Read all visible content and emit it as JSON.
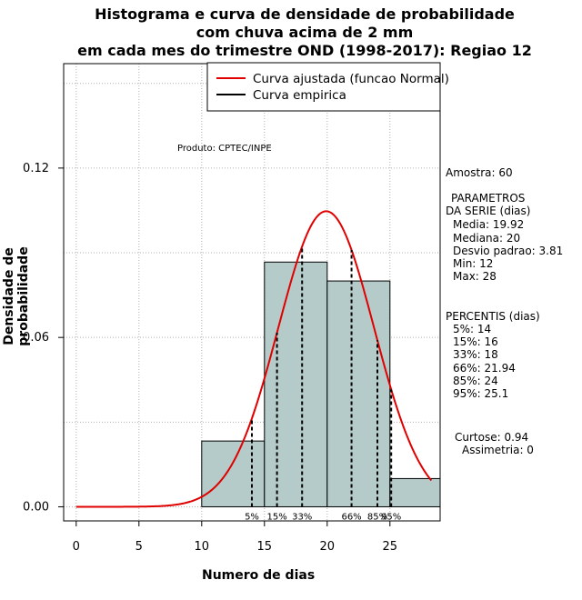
{
  "titles": {
    "line1": "Histograma e curva de densidade de probabilidade",
    "line2": "com chuva acima de 2 mm",
    "line3": "em cada mes do trimestre OND (1998-2017): Regiao 12"
  },
  "credit": "Produto: CPTEC/INPE",
  "legend": {
    "fitted": "Curva ajustada (funcao Normal)",
    "empirical": "Curva empirica"
  },
  "colors": {
    "bar_fill": "#b4cbc9",
    "fitted_curve": "#e00000",
    "empirical": "#000000",
    "grid": "#b0b0b0"
  },
  "stats": {
    "amostra": "Amostra: 60",
    "param_title1": "PARAMETROS",
    "param_title2": "DA SERIE (dias)",
    "media": "Media: 19.92",
    "mediana": "Mediana: 20",
    "desvio": "Desvio padrao: 3.81",
    "min": "Min: 12",
    "max": "Max: 28",
    "percentis_title": "PERCENTIS (dias)",
    "p5": "5%: 14",
    "p15": "15%: 16",
    "p33": "33%: 18",
    "p66": "66%: 21.94",
    "p85": "85%: 24",
    "p95": "95%: 25.1",
    "curtose": "Curtose: 0.94",
    "assimetria": "Assimetria: 0"
  },
  "chart_data": {
    "type": "bar",
    "title": "Histograma e curva de densidade de probabilidade com chuva acima de 2 mm em cada mes do trimestre OND (1998-2017): Regiao 12",
    "xlabel": "Numero de dias",
    "ylabel": "Densidade de probabilidade",
    "xlim": [
      -1,
      29
    ],
    "ylim": [
      -0.005,
      0.157
    ],
    "x_ticks": [
      0,
      5,
      10,
      15,
      20,
      25
    ],
    "x_tick_labels": [
      "0",
      "5",
      "10",
      "15",
      "20",
      "25"
    ],
    "y_ticks": [
      0.0,
      0.06,
      0.12
    ],
    "y_tick_labels": [
      "0.00",
      "0.06",
      "0.12"
    ],
    "grid": true,
    "legend_position": "top-right",
    "bins": [
      {
        "start": 10,
        "end": 15,
        "density": 0.0233
      },
      {
        "start": 15,
        "end": 20,
        "density": 0.0867
      },
      {
        "start": 20,
        "end": 25,
        "density": 0.08
      },
      {
        "start": 25,
        "end": 30,
        "density": 0.01
      }
    ],
    "normal_fit": {
      "mean": 19.92,
      "sd": 3.81,
      "x_from": 0,
      "x_to": 28.3
    },
    "percentiles": [
      {
        "label": "5%",
        "value": 14
      },
      {
        "label": "15%",
        "value": 16
      },
      {
        "label": "33%",
        "value": 18
      },
      {
        "label": "66%",
        "value": 21.94
      },
      {
        "label": "85%",
        "value": 24
      },
      {
        "label": "95%",
        "value": 25.1
      }
    ]
  }
}
